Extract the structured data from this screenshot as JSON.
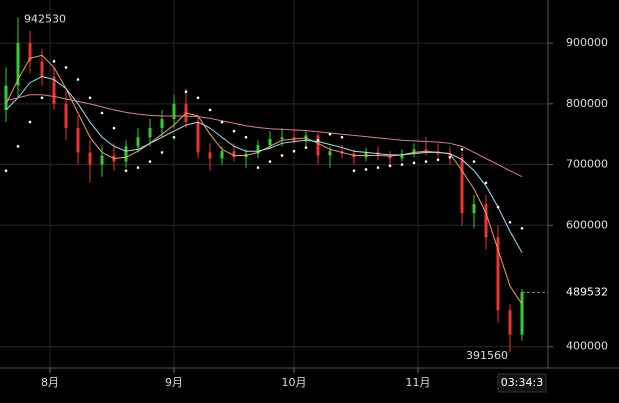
{
  "chart_data": {
    "type": "candlestick",
    "xlim": [
      -12.5,
      124.5
    ],
    "xticks": [
      {
        "value": 0,
        "label": "8月"
      },
      {
        "value": 31,
        "label": "9月"
      },
      {
        "value": 61,
        "label": "10月"
      },
      {
        "value": 92,
        "label": "11月"
      }
    ],
    "ylim": [
      365000,
      971000
    ],
    "yticks": [
      400000,
      600000,
      700000,
      800000,
      900000
    ],
    "grid": true,
    "up_color": "#33cc33",
    "down_color": "#ee3333",
    "x": [
      -11,
      -8,
      -5,
      -2,
      1,
      4,
      7,
      10,
      13,
      16,
      19,
      22,
      25,
      28,
      31,
      34,
      37,
      40,
      43,
      46,
      49,
      52,
      55,
      58,
      61,
      64,
      67,
      70,
      73,
      76,
      79,
      82,
      85,
      88,
      91,
      94,
      97,
      100,
      103,
      106,
      109,
      112,
      115,
      118
    ],
    "open": [
      790000,
      830000,
      900000,
      870000,
      845000,
      800000,
      760000,
      720000,
      700000,
      715000,
      705000,
      730000,
      745000,
      760000,
      775000,
      800000,
      770000,
      720000,
      710000,
      722000,
      712000,
      718000,
      732000,
      742000,
      745000,
      740000,
      748000,
      715000,
      722000,
      718000,
      712000,
      720000,
      714000,
      710000,
      718000,
      725000,
      722000,
      718000,
      712000,
      620000,
      635000,
      580000,
      460000,
      420000
    ],
    "high": [
      860000,
      942530,
      920000,
      890000,
      860000,
      820000,
      780000,
      740000,
      730000,
      735000,
      740000,
      760000,
      775000,
      790000,
      815000,
      825000,
      780000,
      735000,
      730000,
      735000,
      725000,
      740000,
      755000,
      760000,
      758000,
      755000,
      752000,
      730000,
      732000,
      725000,
      728000,
      730000,
      722000,
      725000,
      735000,
      745000,
      735000,
      730000,
      720000,
      650000,
      650000,
      600000,
      470000,
      495000
    ],
    "low": [
      770000,
      810000,
      850000,
      830000,
      790000,
      740000,
      700000,
      670000,
      680000,
      690000,
      695000,
      720000,
      730000,
      745000,
      760000,
      760000,
      710000,
      690000,
      700000,
      705000,
      695000,
      710000,
      725000,
      730000,
      735000,
      730000,
      700000,
      695000,
      710000,
      700000,
      705000,
      708000,
      695000,
      705000,
      712000,
      715000,
      712000,
      700000,
      600000,
      595000,
      560000,
      440000,
      391560,
      410000
    ],
    "close": [
      830000,
      900000,
      870000,
      845000,
      800000,
      760000,
      720000,
      700000,
      715000,
      705000,
      730000,
      745000,
      760000,
      775000,
      800000,
      770000,
      720000,
      710000,
      722000,
      712000,
      718000,
      732000,
      742000,
      745000,
      740000,
      748000,
      715000,
      722000,
      718000,
      712000,
      720000,
      714000,
      710000,
      718000,
      725000,
      722000,
      718000,
      712000,
      620000,
      635000,
      580000,
      460000,
      420000,
      489532
    ],
    "series": [
      {
        "color": "#f0a060",
        "values": [
          800000,
          840000,
          875000,
          880000,
          860000,
          825000,
          785000,
          745000,
          720000,
          710000,
          712000,
          722000,
          735000,
          750000,
          765000,
          785000,
          780000,
          750000,
          725000,
          715000,
          715000,
          720000,
          730000,
          740000,
          742000,
          744000,
          735000,
          725000,
          720000,
          715000,
          715000,
          715000,
          714000,
          716000,
          720000,
          722000,
          720000,
          718000,
          690000,
          660000,
          620000,
          560000,
          500000,
          470000
        ]
      },
      {
        "color": "#9fe0f0",
        "values": [
          790000,
          810000,
          835000,
          845000,
          840000,
          825000,
          800000,
          770000,
          745000,
          730000,
          722000,
          725000,
          735000,
          745000,
          755000,
          765000,
          770000,
          760000,
          745000,
          730000,
          722000,
          722000,
          727000,
          735000,
          738000,
          740000,
          738000,
          733000,
          728000,
          722000,
          720000,
          718000,
          716000,
          716000,
          718000,
          720000,
          720000,
          718000,
          708000,
          690000,
          665000,
          630000,
          590000,
          555000
        ]
      },
      {
        "color": "#e07a90",
        "values": [
          805000,
          810000,
          815000,
          815000,
          812000,
          808000,
          804000,
          800000,
          795000,
          790000,
          786000,
          783000,
          781000,
          780000,
          780000,
          780000,
          779000,
          776000,
          772000,
          768000,
          764000,
          761000,
          759000,
          758000,
          757000,
          756000,
          754000,
          752000,
          750000,
          748000,
          746000,
          744000,
          742000,
          740000,
          739000,
          738000,
          737000,
          735000,
          730000,
          720000,
          710000,
          700000,
          690000,
          680000
        ]
      }
    ],
    "sar": {
      "color": "#ffffff",
      "values": [
        690000,
        730000,
        770000,
        810000,
        870000,
        860000,
        840000,
        810000,
        785000,
        760000,
        690000,
        695000,
        705000,
        720000,
        745000,
        820000,
        810000,
        790000,
        770000,
        755000,
        745000,
        695000,
        705000,
        715000,
        722000,
        728000,
        740000,
        750000,
        745000,
        690000,
        692000,
        695000,
        698000,
        700000,
        703000,
        705000,
        708000,
        712000,
        725000,
        705000,
        670000,
        630000,
        605000,
        595000
      ]
    },
    "high_label": 942530,
    "low_label": 391560,
    "last_price": 489532,
    "time_label": "03:34:3"
  }
}
